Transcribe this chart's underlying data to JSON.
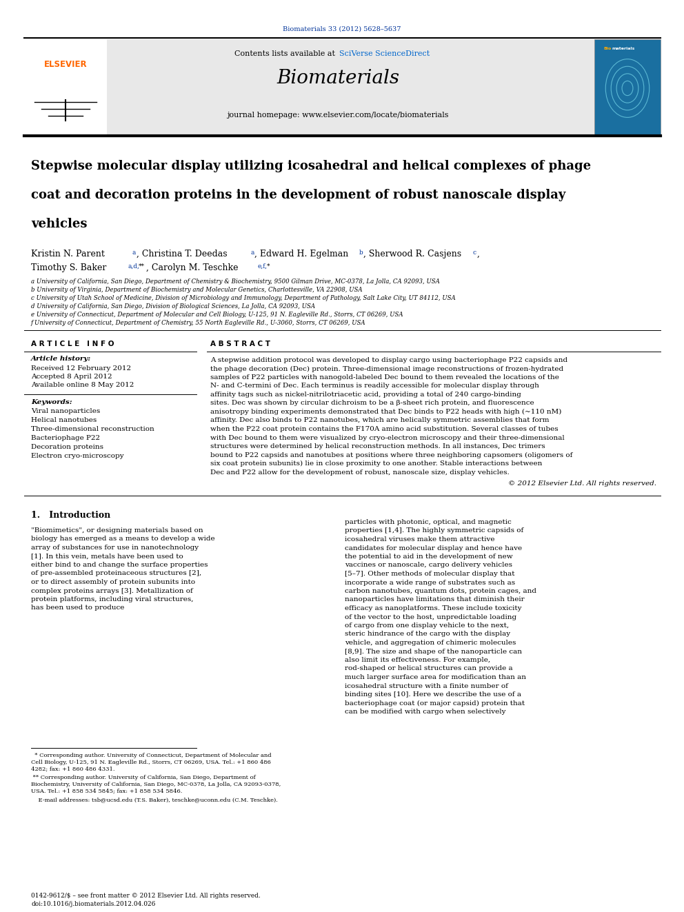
{
  "page_width": 9.92,
  "page_height": 13.23,
  "bg_color": "#ffffff",
  "header_journal_ref": "Biomaterials 33 (2012) 5628–5637",
  "header_journal_ref_color": "#003399",
  "journal_name": "Biomaterials",
  "contents_text": "Contents lists available at ",
  "sciverse_text": "SciVerse ScienceDirect",
  "sciverse_color": "#0066cc",
  "journal_homepage": "journal homepage: www.elsevier.com/locate/biomaterials",
  "header_bg": "#e8e8e8",
  "article_title": "Stepwise molecular display utilizing icosahedral and helical complexes of phage coat and decoration proteins in the development of robust nanoscale display vehicles",
  "affil_a": "a University of California, San Diego, Department of Chemistry & Biochemistry, 9500 Gilman Drive, MC-0378, La Jolla, CA 92093, USA",
  "affil_b": "b University of Virginia, Department of Biochemistry and Molecular Genetics, Charlottesville, VA 22908, USA",
  "affil_c": "c University of Utah School of Medicine, Division of Microbiology and Immunology, Department of Pathology, Salt Lake City, UT 84112, USA",
  "affil_d": "d University of California, San Diego, Division of Biological Sciences, La Jolla, CA 92093, USA",
  "affil_e": "e University of Connecticut, Department of Molecular and Cell Biology, U-125, 91 N. Eagleville Rd., Storrs, CT 06269, USA",
  "affil_f": "f University of Connecticut, Department of Chemistry, 55 North Eagleville Rd., U-3060, Storrs, CT 06269, USA",
  "article_info_label": "A R T I C L E   I N F O",
  "article_history_label": "Article history:",
  "received": "Received 12 February 2012",
  "accepted": "Accepted 8 April 2012",
  "available": "Available online 8 May 2012",
  "keywords_label": "Keywords:",
  "keywords": [
    "Viral nanoparticles",
    "Helical nanotubes",
    "Three-dimensional reconstruction",
    "Bacteriophage P22",
    "Decoration proteins",
    "Electron cryo-microscopy"
  ],
  "abstract_label": "A B S T R A C T",
  "abstract_text": "A stepwise addition protocol was developed to display cargo using bacteriophage P22 capsids and the phage decoration (Dec) protein. Three-dimensional image reconstructions of frozen-hydrated samples of P22 particles with nanogold-labeled Dec bound to them revealed the locations of the N- and C-termini of Dec. Each terminus is readily accessible for molecular display through affinity tags such as nickel-nitrilotriacetic acid, providing a total of 240 cargo-binding sites. Dec was shown by circular dichroism to be a β-sheet rich protein, and fluorescence anisotropy binding experiments demonstrated that Dec binds to P22 heads with high (~110 nM) affinity. Dec also binds to P22 nanotubes, which are helically symmetric assemblies that form when the P22 coat protein contains the F170A amino acid substitution. Several classes of tubes with Dec bound to them were visualized by cryo-electron microscopy and their three-dimensional structures were determined by helical reconstruction methods. In all instances, Dec trimers bound to P22 capsids and nanotubes at positions where three neighboring capsomers (oligomers of six coat protein subunits) lie in close proximity to one another. Stable interactions between Dec and P22 allow for the development of robust, nanoscale size, display vehicles.",
  "copyright_text": "© 2012 Elsevier Ltd. All rights reserved.",
  "intro_heading": "1.   Introduction",
  "intro_col1": "     \"Biomimetics\", or designing materials based on biology has emerged as a means to develop a wide array of substances for use in nanotechnology [1]. In this vein, metals have been used to either bind to and change the surface properties of pre-assembled proteinaceous structures [2], or to direct assembly of protein subunits into complex proteins arrays [3]. Metallization of protein platforms, including viral structures, has been used to produce",
  "intro_col2": "particles with photonic, optical, and magnetic properties [1,4]. The highly symmetric capsids of icosahedral viruses make them attractive candidates for molecular display and hence have the potential to aid in the development of new vaccines or nanoscale, cargo delivery vehicles [5–7]. Other methods of molecular display that incorporate a wide range of substrates such as carbon nanotubes, quantum dots, protein cages, and nanoparticles have limitations that diminish their efficacy as nanoplatforms. These include toxicity of the vector to the host, unpredictable loading of cargo from one display vehicle to the next, steric hindrance of the cargo with the display vehicle, and aggregation of chimeric molecules [8,9]. The size and shape of the nanoparticle can also limit its effectiveness. For example, rod-shaped or helical structures can provide a much larger surface area for modification than an icosahedral structure with a finite number of binding sites [10]. Here we describe the use of a bacteriophage coat (or major capsid) protein that can be modified with cargo when selectively",
  "footnote1": "  * Corresponding author. University of Connecticut, Department of Molecular and\nCell Biology, U-125, 91 N. Eagleville Rd., Storrs, CT 06269, USA. Tel.: +1 860 486\n4282; fax: +1 860 486 4331.",
  "footnote2": " ** Corresponding author. University of California, San Diego, Department of\nBiochemistry, University of California, San Diego, MC-0378, La Jolla, CA 92093-0378,\nUSA. Tel.: +1 858 534 5845; fax: +1 858 534 5846.",
  "footnote3": "    E-mail addresses: tsb@ucsd.edu (T.S. Baker), teschke@uconn.edu (C.M. Teschke).",
  "bottom_ref1": "0142-9612/$ – see front matter © 2012 Elsevier Ltd. All rights reserved.",
  "bottom_ref2": "doi:10.1016/j.biomaterials.2012.04.026",
  "elsevier_color": "#ff6600",
  "elsevier_text": "ELSEVIER"
}
